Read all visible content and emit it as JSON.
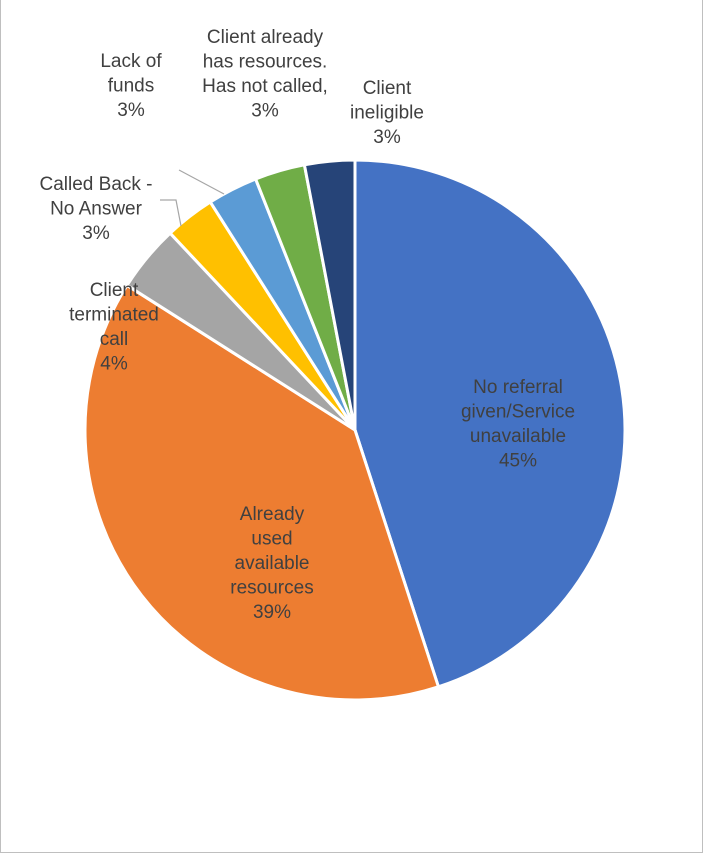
{
  "chart_data": {
    "type": "pie",
    "title": "",
    "slices": [
      {
        "label": [
          "No referral",
          "given/Service",
          "unavailable"
        ],
        "percent_text": "45%",
        "value": 45,
        "color": "#4472C4"
      },
      {
        "label": [
          "Already",
          "used",
          "available",
          "resources"
        ],
        "percent_text": "39%",
        "value": 39,
        "color": "#ED7D31"
      },
      {
        "label": [
          "Client",
          "terminated",
          "call"
        ],
        "percent_text": "4%",
        "value": 4,
        "color": "#A5A5A5"
      },
      {
        "label": [
          "Called Back -",
          "No Answer"
        ],
        "percent_text": "3%",
        "value": 3,
        "color": "#FFC000"
      },
      {
        "label": [
          "Lack of",
          "funds"
        ],
        "percent_text": "3%",
        "value": 3,
        "color": "#5B9BD5"
      },
      {
        "label": [
          "Client already",
          "has resources.",
          "Has not called,"
        ],
        "percent_text": "3%",
        "value": 3,
        "color": "#70AD47"
      },
      {
        "label": [
          "Client",
          "ineligible"
        ],
        "percent_text": "3%",
        "value": 3,
        "color": "#264478"
      }
    ]
  }
}
